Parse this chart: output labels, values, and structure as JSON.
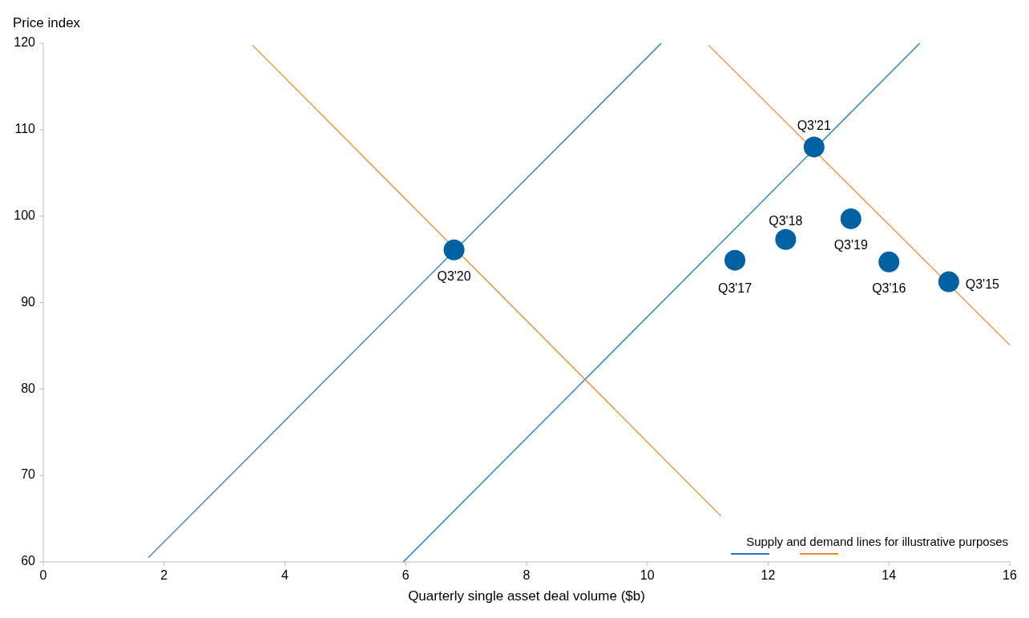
{
  "chart_data": {
    "type": "scatter",
    "xlabel": "Quarterly single asset deal volume ($b)",
    "ylabel": "Price index",
    "xlim": [
      0,
      16
    ],
    "ylim": [
      60,
      120
    ],
    "xticks": [
      0,
      2,
      4,
      6,
      8,
      10,
      12,
      14,
      16
    ],
    "yticks": [
      60,
      70,
      80,
      90,
      100,
      110,
      120
    ],
    "grid": false,
    "annotations": [
      "Supply and demand lines for illustrative purposes"
    ],
    "series": [
      {
        "type": "line",
        "color": "#2378c3",
        "x": [
          1.74,
          10.23
        ],
        "values": [
          60.5,
          120
        ]
      },
      {
        "type": "line",
        "color": "#2378c3",
        "x": [
          5.96,
          14.51
        ],
        "values": [
          60,
          120
        ]
      },
      {
        "type": "line",
        "color": "#f0892a",
        "x": [
          3.46,
          11.22
        ],
        "values": [
          119.8,
          65.3
        ]
      },
      {
        "type": "line",
        "color": "#f0892a",
        "x": [
          11.01,
          16
        ],
        "values": [
          119.8,
          85.1
        ]
      },
      {
        "color": "#0062a3",
        "marker": "circle",
        "x": [
          14.99,
          14.0,
          11.45,
          12.29,
          13.37,
          6.8,
          12.76
        ],
        "values": [
          92.4,
          94.7,
          94.9,
          97.3,
          99.7,
          96.1,
          108.0
        ],
        "value_labels": [
          "Q3'15",
          "Q3'16",
          "Q3'17",
          "Q3'18",
          "Q3'19",
          "Q3'20",
          "Q3'21"
        ]
      }
    ]
  }
}
